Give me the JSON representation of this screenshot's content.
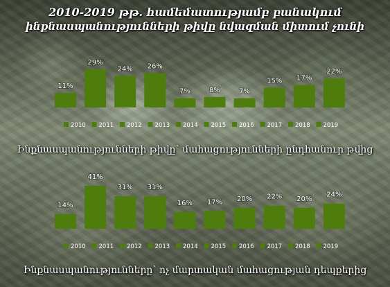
{
  "title_line1": "2010-2019 թթ. համեմատությամբ բանակում",
  "title_line2": "ինքնասպանությունների թիվը նվազման միտում չունի",
  "colors": {
    "bar": "#4e7d0e",
    "label": "#ffffff"
  },
  "chart_data": [
    {
      "type": "bar",
      "title": "",
      "caption": "Ինքնասպանությունների թիվը՝ մահացությունների ընդհանուր թվից",
      "categories": [
        "2010",
        "2011",
        "2012",
        "2013",
        "2014",
        "2015",
        "2016",
        "2017",
        "2018",
        "2019"
      ],
      "values": [
        11,
        29,
        24,
        26,
        7,
        8,
        7,
        15,
        17,
        22
      ],
      "value_labels": [
        "11%",
        "29%",
        "24%",
        "26%",
        "7%",
        "8%",
        "7%",
        "15%",
        "17%",
        "22%"
      ],
      "unit": "%",
      "ylim": [
        0,
        30
      ],
      "grid": false,
      "legend": "bottom"
    },
    {
      "type": "bar",
      "title": "",
      "caption": "Ինքնասպանությունները՝ ոչ մարտական մահացության դեպքերից",
      "categories": [
        "2010",
        "2011",
        "2012",
        "2013",
        "2014",
        "2015",
        "2016",
        "2017",
        "2018",
        "2019"
      ],
      "values": [
        14,
        41,
        31,
        31,
        16,
        17,
        20,
        22,
        20,
        24
      ],
      "value_labels": [
        "14%",
        "41%",
        "31%",
        "31%",
        "16%",
        "17%",
        "20%",
        "22%",
        "20%",
        "24%"
      ],
      "unit": "%",
      "ylim": [
        0,
        41
      ],
      "grid": false,
      "legend": "bottom"
    }
  ]
}
